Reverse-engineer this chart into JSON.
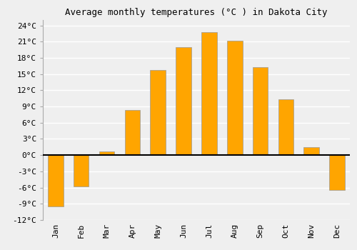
{
  "title": "Average monthly temperatures (°C ) in Dakota City",
  "months": [
    "Jan",
    "Feb",
    "Mar",
    "Apr",
    "May",
    "Jun",
    "Jul",
    "Aug",
    "Sep",
    "Oct",
    "Nov",
    "Dec"
  ],
  "values": [
    -9.5,
    -5.8,
    0.7,
    8.3,
    15.7,
    20.0,
    22.7,
    21.2,
    16.3,
    10.3,
    1.5,
    -6.5
  ],
  "bar_color": "#FFA500",
  "bar_edge_color": "#999999",
  "ylim": [
    -12,
    25
  ],
  "yticks": [
    -12,
    -9,
    -6,
    -3,
    0,
    3,
    6,
    9,
    12,
    15,
    18,
    21,
    24
  ],
  "ytick_labels": [
    "-12°C",
    "-9°C",
    "-6°C",
    "-3°C",
    "0°C",
    "3°C",
    "6°C",
    "9°C",
    "12°C",
    "15°C",
    "18°C",
    "21°C",
    "24°C"
  ],
  "background_color": "#efefef",
  "grid_color": "#ffffff",
  "zero_line_color": "#000000",
  "title_fontsize": 9,
  "tick_fontsize": 8,
  "bar_width": 0.6
}
